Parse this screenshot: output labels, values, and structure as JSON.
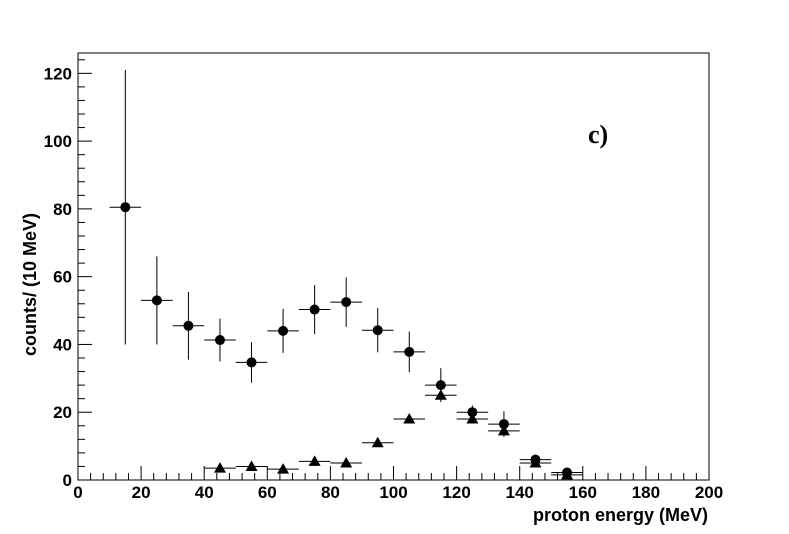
{
  "chart_data": {
    "type": "scatter",
    "panel_label": "c)",
    "xlabel": "proton energy (MeV)",
    "ylabel": "counts/ (10 MeV)",
    "xlim": [
      0,
      200
    ],
    "ylim": [
      0,
      126
    ],
    "x_ticks": [
      0,
      20,
      40,
      60,
      80,
      100,
      120,
      140,
      160,
      180,
      200
    ],
    "y_ticks": [
      0,
      20,
      40,
      60,
      80,
      100,
      120
    ],
    "bin_width": 10,
    "grid": false,
    "series": [
      {
        "marker": "circle",
        "color": "#000000",
        "points": [
          {
            "x": 15,
            "y": 80.5,
            "err": 40.5
          },
          {
            "x": 25,
            "y": 53,
            "err": 13
          },
          {
            "x": 35,
            "y": 45.5,
            "err": 10
          },
          {
            "x": 45,
            "y": 41.3,
            "err": 6.3
          },
          {
            "x": 55,
            "y": 34.7,
            "err": 6
          },
          {
            "x": 65,
            "y": 44,
            "err": 6.5
          },
          {
            "x": 75,
            "y": 50.3,
            "err": 7.2
          },
          {
            "x": 85,
            "y": 52.5,
            "err": 7.3
          },
          {
            "x": 95,
            "y": 44.2,
            "err": 6.5
          },
          {
            "x": 105,
            "y": 37.8,
            "err": 6
          },
          {
            "x": 115,
            "y": 28,
            "err": 5
          },
          {
            "x": 125,
            "y": 20,
            "err": 2
          },
          {
            "x": 135,
            "y": 16.5,
            "err": 3.8
          },
          {
            "x": 145,
            "y": 6,
            "err": 1.5
          },
          {
            "x": 155,
            "y": 2.2,
            "err": 1
          }
        ]
      },
      {
        "marker": "triangle",
        "color": "#000000",
        "points": [
          {
            "x": 45,
            "y": 3.5,
            "err": 0
          },
          {
            "x": 55,
            "y": 4,
            "err": 0
          },
          {
            "x": 65,
            "y": 3.2,
            "err": 0
          },
          {
            "x": 75,
            "y": 5.5,
            "err": 0
          },
          {
            "x": 85,
            "y": 5,
            "err": 0
          },
          {
            "x": 95,
            "y": 11,
            "err": 0
          },
          {
            "x": 105,
            "y": 18,
            "err": 0
          },
          {
            "x": 115,
            "y": 25,
            "err": 0
          },
          {
            "x": 125,
            "y": 18,
            "err": 0
          },
          {
            "x": 135,
            "y": 14.5,
            "err": 0
          },
          {
            "x": 145,
            "y": 5,
            "err": 0
          },
          {
            "x": 155,
            "y": 1.5,
            "err": 0
          }
        ]
      }
    ]
  }
}
